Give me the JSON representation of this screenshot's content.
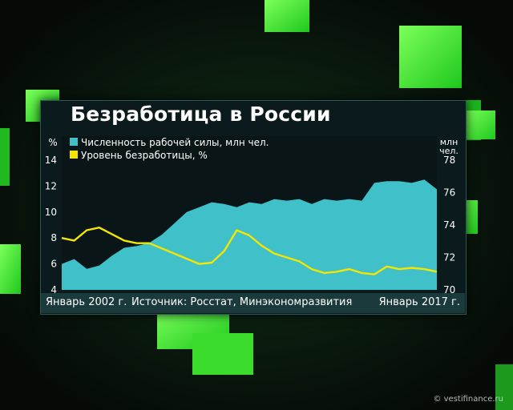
{
  "title": "Безработица в России",
  "source_label": "Источник: Росстат, Минэкономразвития",
  "period_start": "Январь 2002 г.",
  "period_end": "Январь 2017 г.",
  "watermark": "© vestifinance.ru",
  "colors": {
    "labor_force": "#40c0c8",
    "unemployment": "#f5e600",
    "background": "#050a06",
    "accent": "#39ff14"
  },
  "chart_data": {
    "type": "area",
    "legend": [
      "Численность рабочей силы, млн чел.",
      "Уровень безработицы, %"
    ],
    "legend_position": "top-left",
    "y_left_unit": "%",
    "y_right_unit": "млн чел.",
    "y_left_ticks": [
      "14",
      "12",
      "10",
      "8",
      "6",
      "4"
    ],
    "y_right_ticks": [
      "78",
      "76",
      "74",
      "72",
      "70"
    ],
    "y_left_range": [
      4,
      14
    ],
    "y_right_range": [
      70,
      78
    ],
    "x_range": [
      2002.0,
      2017.0
    ],
    "grid": false,
    "series": [
      {
        "name": "Численность рабочей силы, млн чел.",
        "axis": "right",
        "type": "area",
        "x": [
          2002.0,
          2002.5,
          2003.0,
          2003.5,
          2004.0,
          2004.5,
          2005.0,
          2005.5,
          2006.0,
          2006.5,
          2007.0,
          2007.5,
          2008.0,
          2008.5,
          2009.0,
          2009.5,
          2010.0,
          2010.5,
          2011.0,
          2011.5,
          2012.0,
          2012.5,
          2013.0,
          2013.5,
          2014.0,
          2014.5,
          2015.0,
          2015.5,
          2016.0,
          2016.5,
          2017.0
        ],
        "y": [
          71.6,
          71.9,
          71.3,
          71.5,
          72.1,
          72.6,
          72.7,
          72.9,
          73.4,
          74.1,
          74.8,
          75.1,
          75.4,
          75.3,
          75.1,
          75.4,
          75.3,
          75.6,
          75.5,
          75.6,
          75.3,
          75.6,
          75.5,
          75.6,
          75.5,
          76.6,
          76.7,
          76.7,
          76.6,
          76.8,
          76.2
        ]
      },
      {
        "name": "Уровень безработицы, %",
        "axis": "left",
        "type": "line",
        "x": [
          2002.0,
          2002.5,
          2003.0,
          2003.5,
          2004.0,
          2004.5,
          2005.0,
          2005.5,
          2006.0,
          2006.5,
          2007.0,
          2007.5,
          2008.0,
          2008.5,
          2009.0,
          2009.5,
          2010.0,
          2010.5,
          2011.0,
          2011.5,
          2012.0,
          2012.5,
          2013.0,
          2013.5,
          2014.0,
          2014.5,
          2015.0,
          2015.5,
          2016.0,
          2016.5,
          2017.0
        ],
        "y": [
          8.0,
          7.8,
          8.6,
          8.8,
          8.3,
          7.8,
          7.6,
          7.6,
          7.2,
          6.8,
          6.4,
          6.0,
          6.1,
          7.0,
          8.6,
          8.2,
          7.4,
          6.8,
          6.5,
          6.2,
          5.6,
          5.3,
          5.4,
          5.6,
          5.3,
          5.2,
          5.8,
          5.6,
          5.7,
          5.6,
          5.4
        ]
      }
    ]
  }
}
